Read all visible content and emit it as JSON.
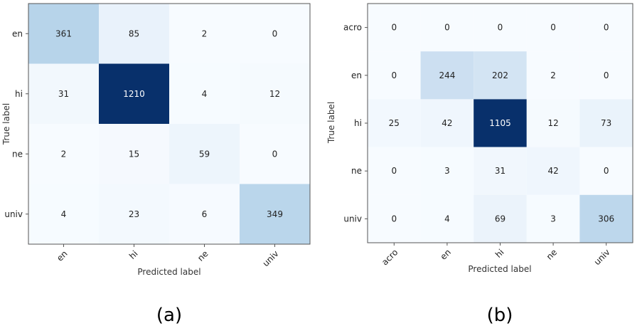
{
  "chart_data": [
    {
      "type": "heatmap",
      "panel_label": "(a)",
      "x_categories": [
        "en",
        "hi",
        "ne",
        "univ"
      ],
      "y_categories": [
        "en",
        "hi",
        "ne",
        "univ"
      ],
      "values": [
        [
          361,
          85,
          2,
          0
        ],
        [
          31,
          1210,
          4,
          12
        ],
        [
          2,
          15,
          59,
          0
        ],
        [
          4,
          23,
          6,
          349
        ]
      ],
      "xlabel": "Predicted label",
      "ylabel": "True label",
      "colormap": "Blues",
      "vmin": 0,
      "vmax": 1210
    },
    {
      "type": "heatmap",
      "panel_label": "(b)",
      "x_categories": [
        "acro",
        "en",
        "hi",
        "ne",
        "univ"
      ],
      "y_categories": [
        "acro",
        "en",
        "hi",
        "ne",
        "univ"
      ],
      "values": [
        [
          0,
          0,
          0,
          0,
          0
        ],
        [
          0,
          244,
          202,
          2,
          0
        ],
        [
          25,
          42,
          1105,
          12,
          73
        ],
        [
          0,
          3,
          31,
          42,
          0
        ],
        [
          0,
          4,
          69,
          3,
          306
        ]
      ],
      "xlabel": "Predicted label",
      "ylabel": "True label",
      "colormap": "Blues",
      "vmin": 0,
      "vmax": 1105
    }
  ],
  "colors": {
    "low": "#f7fbff",
    "high": "#08306b",
    "text_dark": "#222222",
    "text_light": "#ffffff",
    "frame": "#555555"
  }
}
